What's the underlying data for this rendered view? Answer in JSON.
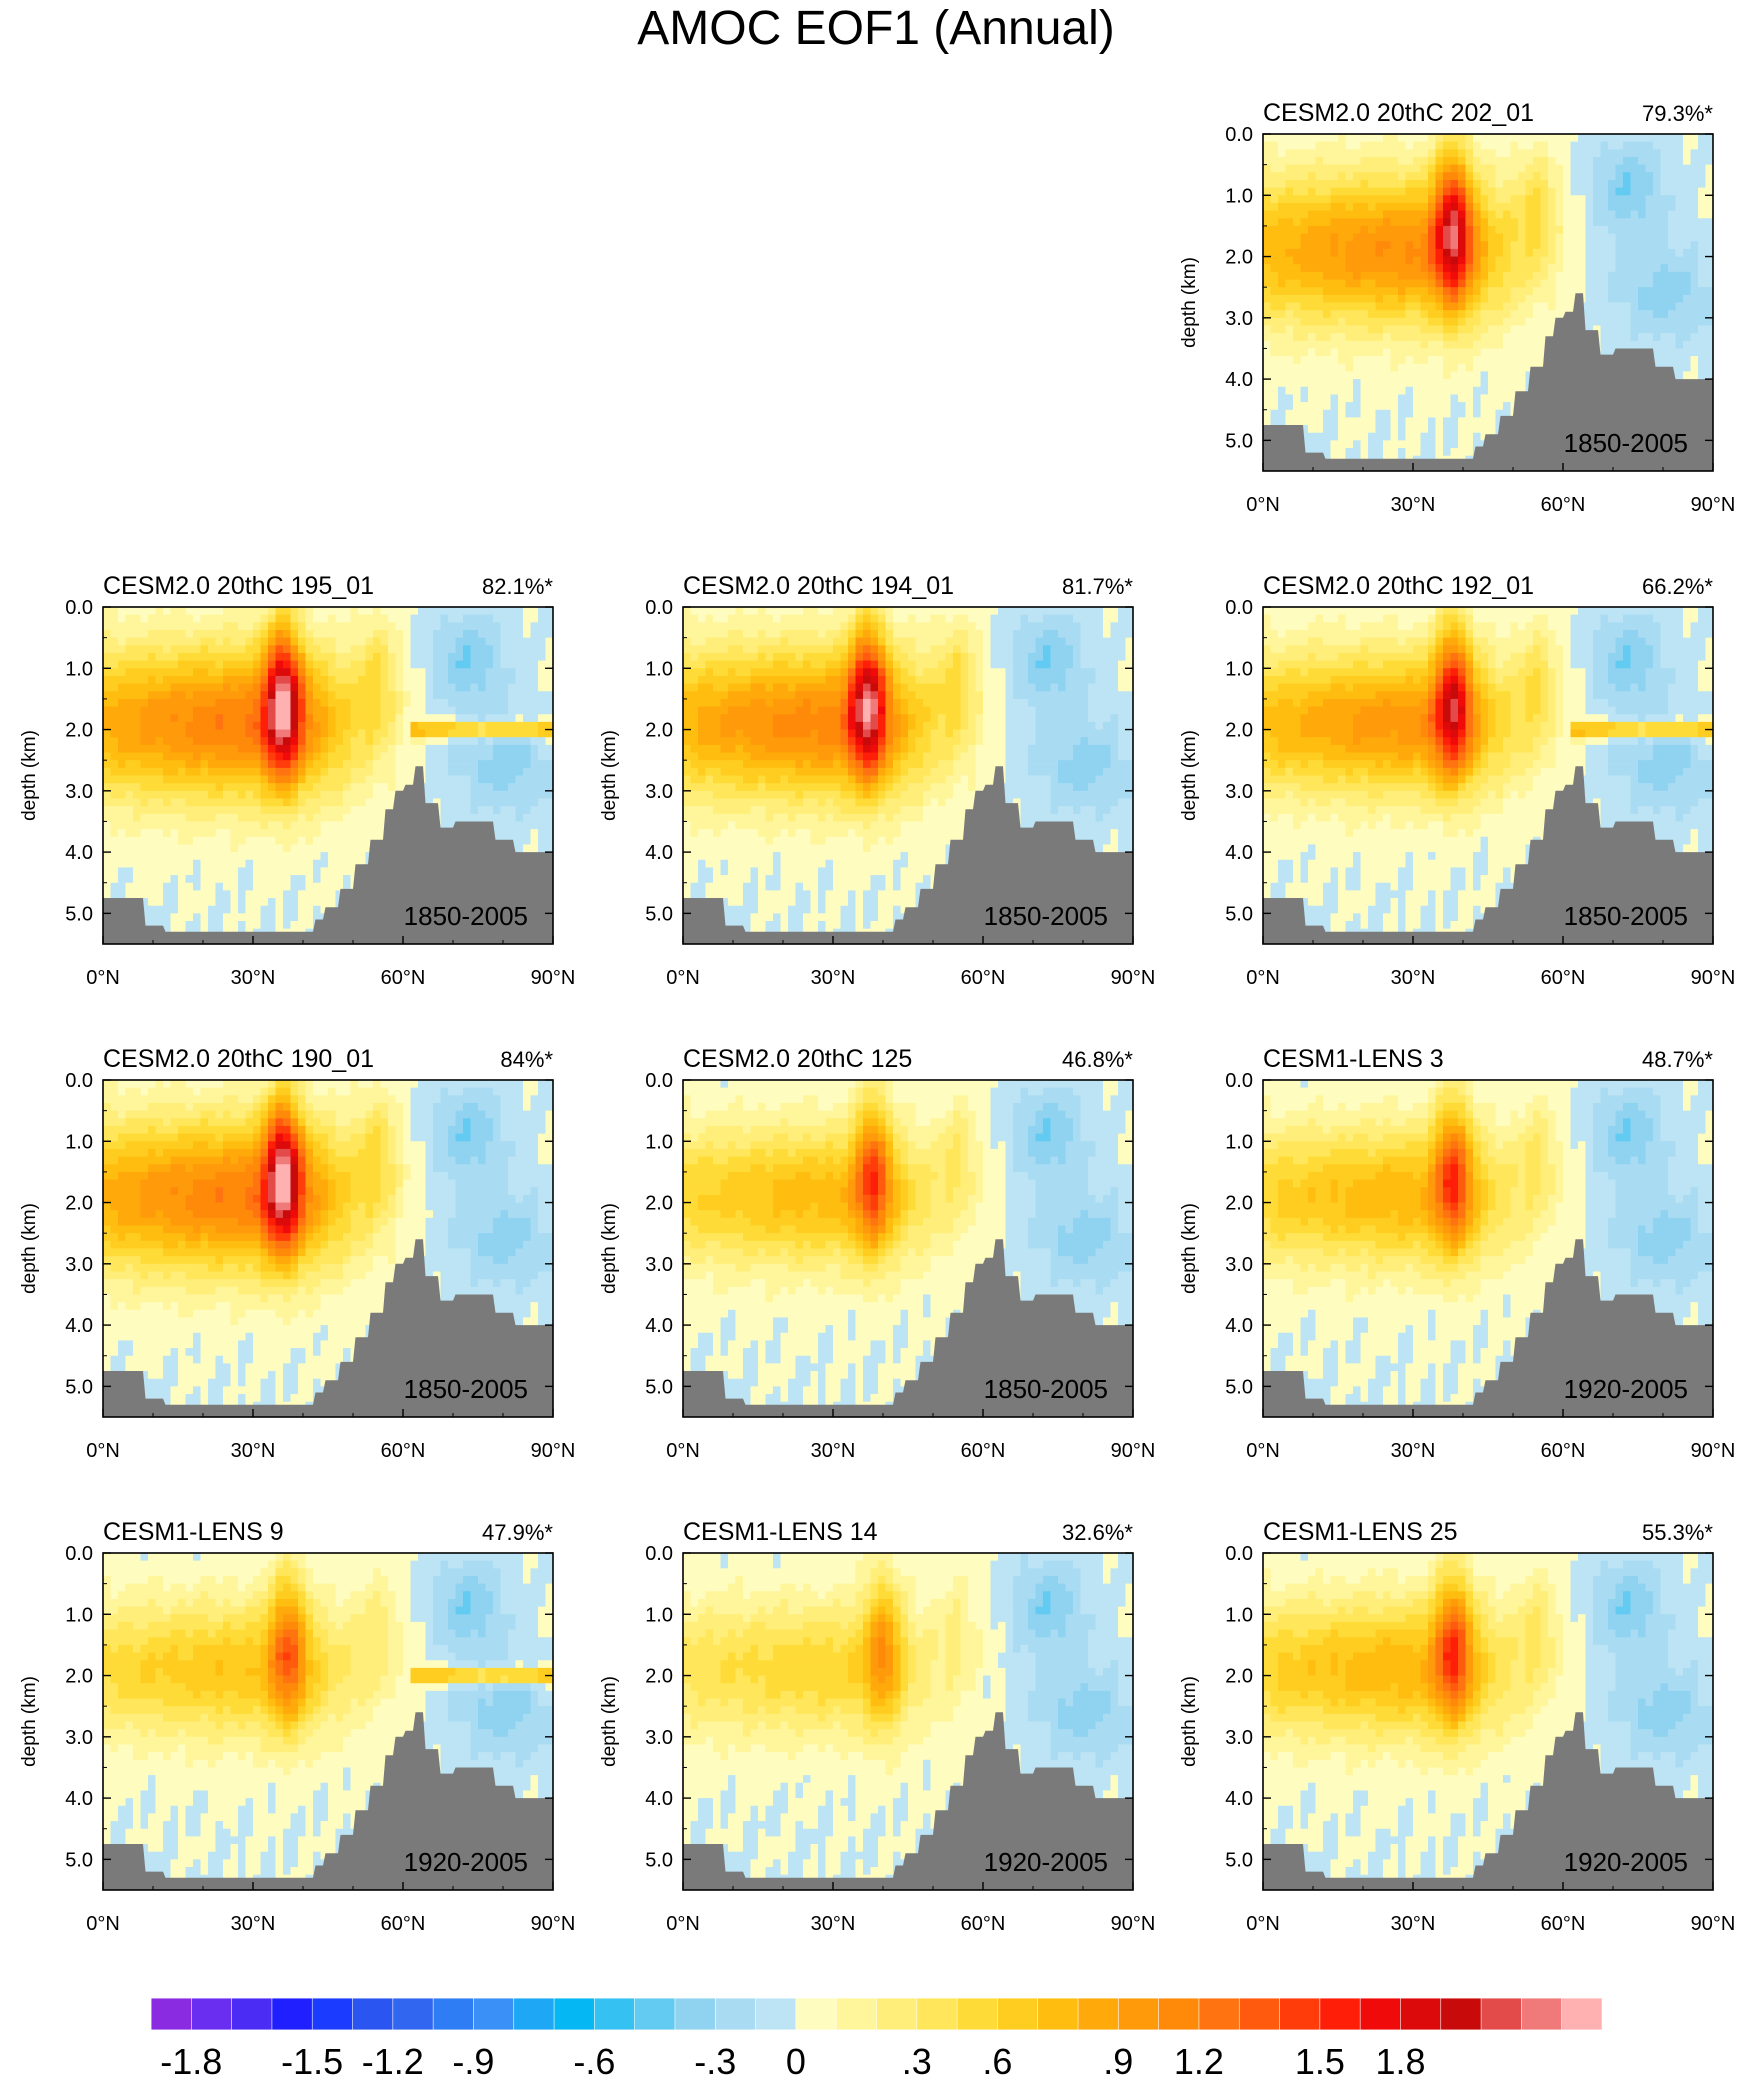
{
  "figure": {
    "title": "AMOC EOF1 (Annual)"
  },
  "chart_data": {
    "type": "heatmap",
    "variable": "AMOC EOF1 (Annual)",
    "x_axis": {
      "ticks": [
        0,
        30,
        60,
        90
      ],
      "tick_labels": [
        "0°N",
        "30°N",
        "60°N",
        "90°N"
      ],
      "range": [
        0,
        90
      ]
    },
    "y_axis": {
      "label": "depth (km)",
      "ticks": [
        0.0,
        1.0,
        2.0,
        3.0,
        4.0,
        5.0
      ],
      "tick_labels": [
        "0.0",
        "1.0",
        "2.0",
        "3.0",
        "4.0",
        "5.0"
      ],
      "range": [
        0,
        5.5
      ]
    },
    "colorbar": {
      "labels": [
        "-1.8",
        "-1.5",
        "-1.2",
        "-.9",
        "-.6",
        "-.3",
        "0",
        ".3",
        ".6",
        ".9",
        "1.2",
        "1.5",
        "1.8"
      ],
      "label_values": [
        -1.8,
        -1.5,
        -1.2,
        -0.9,
        -0.6,
        -0.3,
        0,
        0.3,
        0.6,
        0.9,
        1.2,
        1.5,
        1.8
      ],
      "colors": [
        "#8a2be2",
        "#6a2ef0",
        "#4b2cf5",
        "#1f1fff",
        "#1b3bff",
        "#2a55f0",
        "#3166f0",
        "#2f7df5",
        "#3a90f7",
        "#1ea7f5",
        "#05b7f3",
        "#35c2f2",
        "#63cbf1",
        "#8fd3f1",
        "#a9dbf2",
        "#bde4f4",
        "#fffcbf",
        "#fff59a",
        "#ffee7a",
        "#ffe65a",
        "#ffdb38",
        "#ffcd20",
        "#ffbd10",
        "#ffa90a",
        "#ff9a0a",
        "#ff8a0a",
        "#ff7410",
        "#ff5a0d",
        "#ff3c0a",
        "#ff1e08",
        "#f00a0a",
        "#dc0a0a",
        "#c80a0a",
        "#e34a4a",
        "#f07a7a",
        "#ffb0b0"
      ]
    },
    "panels": [
      {
        "title": "CESM2.0 20thC 202_01",
        "variance_pct": "79.3%*",
        "period": "1850-2005",
        "peak": 2.0,
        "core_lat": 38,
        "deep": 1.0
      },
      {
        "title": "CESM2.0 20thC 195_01",
        "variance_pct": "82.1%*",
        "period": "1850-2005",
        "peak": 2.2,
        "core_lat": 36,
        "deep": 1.1,
        "band": true
      },
      {
        "title": "CESM2.0 20thC 194_01",
        "variance_pct": "81.7%*",
        "period": "1850-2005",
        "peak": 2.1,
        "core_lat": 37,
        "deep": 1.05
      },
      {
        "title": "CESM2.0 20thC 192_01",
        "variance_pct": "66.2%*",
        "period": "1850-2005",
        "peak": 1.9,
        "core_lat": 38,
        "deep": 0.7,
        "band": true
      },
      {
        "title": "CESM2.0 20thC 190_01",
        "variance_pct": "84%*",
        "period": "1850-2005",
        "peak": 2.2,
        "core_lat": 36,
        "deep": 1.1
      },
      {
        "title": "CESM2.0 20thC 125",
        "variance_pct": "46.8%*",
        "period": "1850-2005",
        "peak": 1.45,
        "core_lat": 38,
        "deep": 0.6
      },
      {
        "title": "CESM1-LENS 3",
        "variance_pct": "48.7%*",
        "period": "1920-2005",
        "peak": 1.5,
        "core_lat": 38,
        "deep": 0.6
      },
      {
        "title": "CESM1-LENS 9",
        "variance_pct": "47.9%*",
        "period": "1920-2005",
        "peak": 1.3,
        "core_lat": 37,
        "deep": 0.55,
        "band": true
      },
      {
        "title": "CESM1-LENS 14",
        "variance_pct": "32.6%*",
        "period": "1920-2005",
        "peak": 1.05,
        "core_lat": 40,
        "deep": 0.5
      },
      {
        "title": "CESM1-LENS 25",
        "variance_pct": "55.3%*",
        "period": "1920-2005",
        "peak": 1.5,
        "core_lat": 38,
        "deep": 0.65
      }
    ]
  }
}
